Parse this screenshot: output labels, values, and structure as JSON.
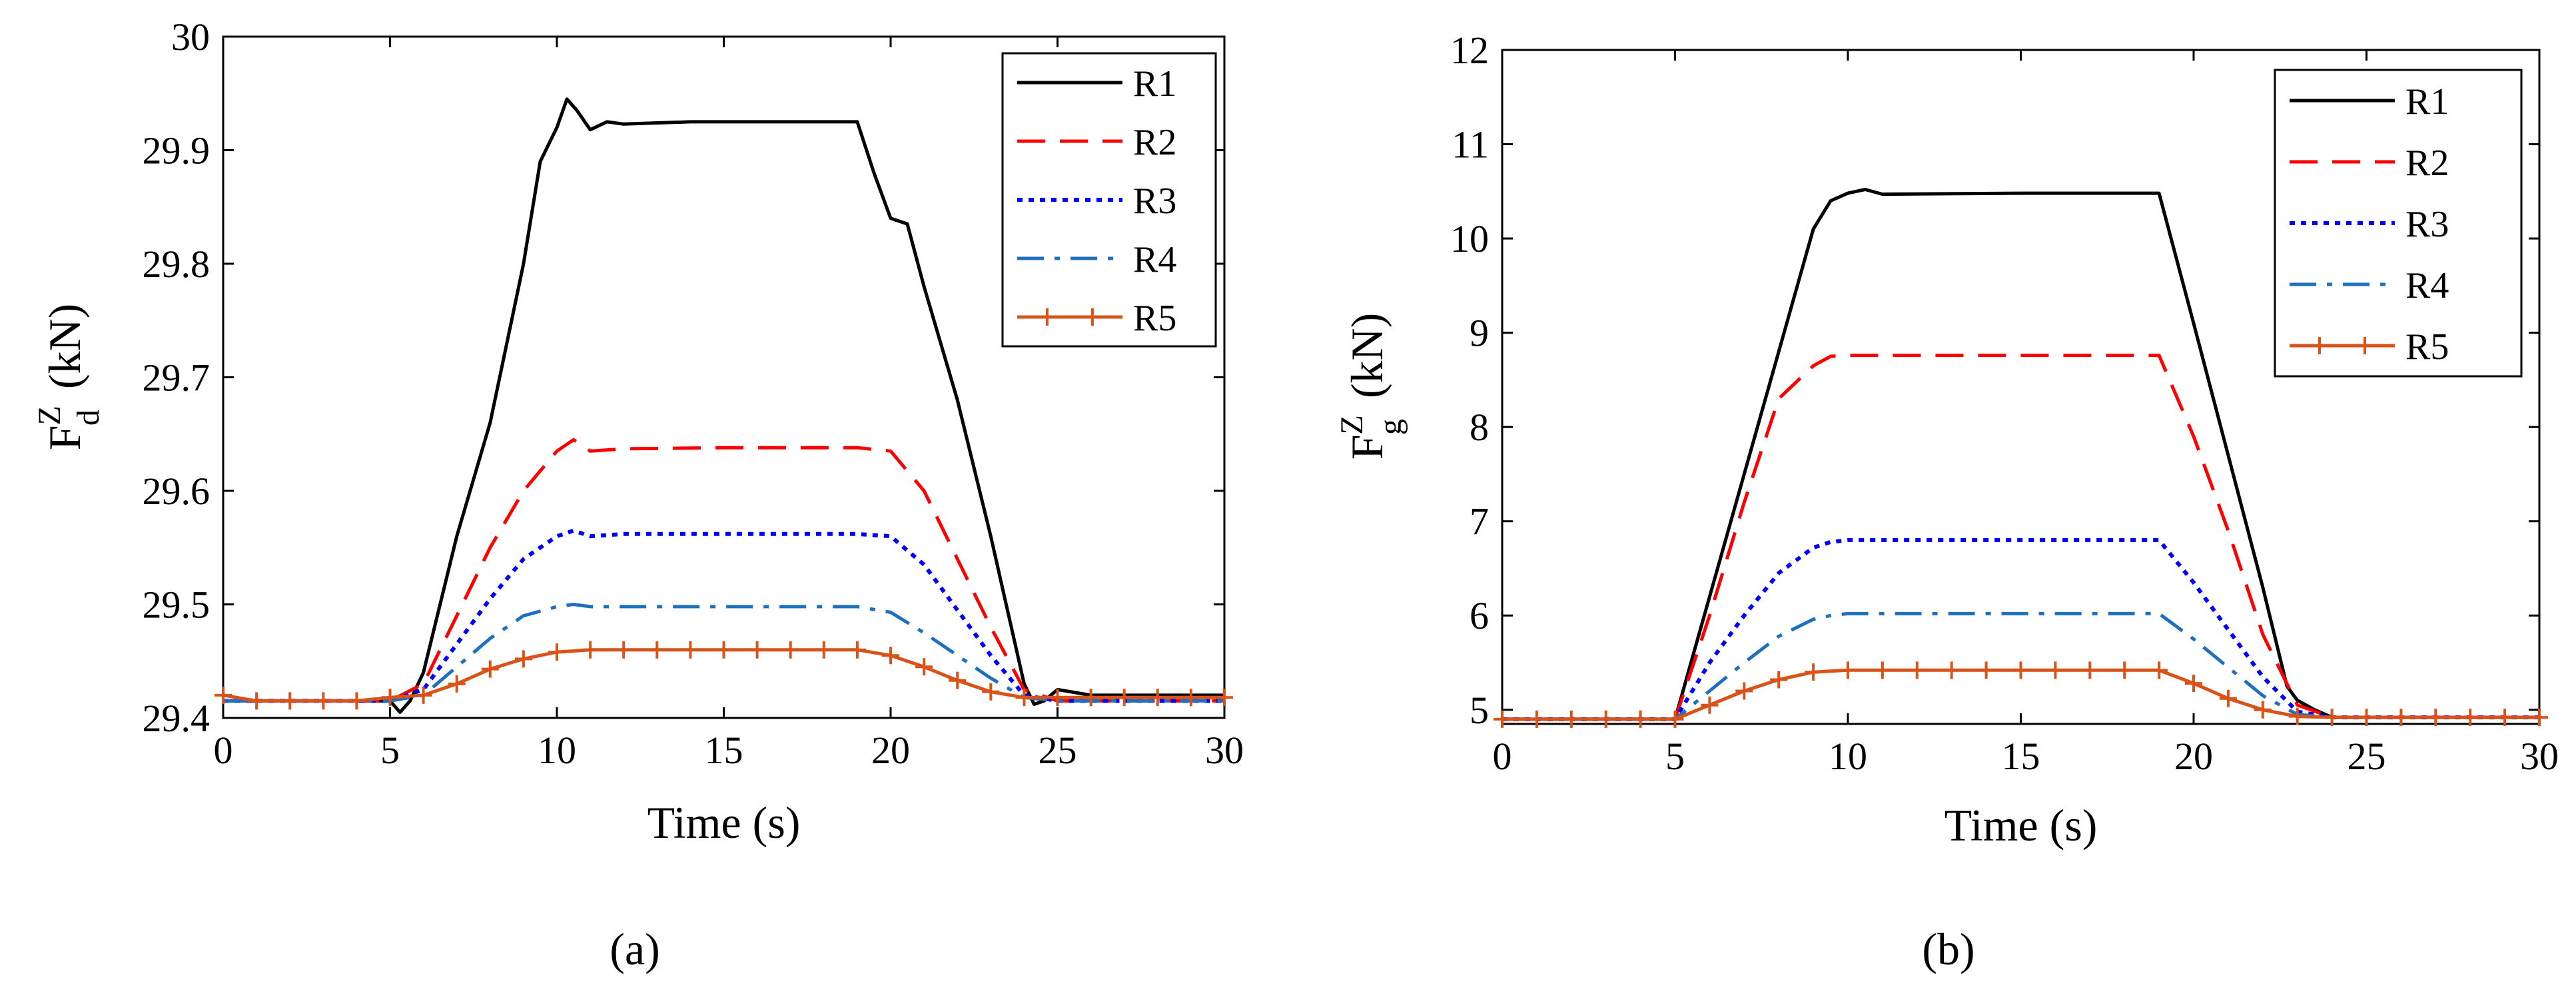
{
  "figure": {
    "captions": [
      "(a)",
      "(b)"
    ]
  },
  "chart_data": [
    {
      "type": "line",
      "panel": "a",
      "xlabel": "Time (s)",
      "ylabel": {
        "main": "F",
        "sup": "Z",
        "sub": "d",
        "unit": "(kN)"
      },
      "xlim": [
        0,
        30
      ],
      "ylim": [
        29.4,
        30
      ],
      "xticks": [
        0,
        5,
        10,
        15,
        20,
        25,
        30
      ],
      "yticks": [
        29.4,
        29.5,
        29.6,
        29.7,
        29.8,
        29.9,
        30
      ],
      "ytick_labels": [
        "29.4",
        "29.5",
        "29.6",
        "29.7",
        "29.8",
        "29.9",
        "30"
      ],
      "legend_position": "top-right",
      "series": [
        {
          "name": "R1",
          "color": "#000000",
          "style": "solid",
          "x": [
            0,
            5,
            5.3,
            5.6,
            6,
            7,
            8,
            9,
            9.5,
            10,
            10.3,
            10.6,
            11,
            11.5,
            12,
            14,
            16,
            18,
            19,
            19.5,
            20,
            20.5,
            21,
            22,
            23,
            24,
            24.3,
            24.6,
            25,
            26,
            28,
            30
          ],
          "y": [
            29.415,
            29.415,
            29.405,
            29.415,
            29.44,
            29.56,
            29.66,
            29.8,
            29.89,
            29.92,
            29.945,
            29.935,
            29.918,
            29.925,
            29.923,
            29.925,
            29.925,
            29.925,
            29.925,
            29.88,
            29.84,
            29.835,
            29.78,
            29.68,
            29.56,
            29.43,
            29.412,
            29.415,
            29.425,
            29.42,
            29.42,
            29.42
          ]
        },
        {
          "name": "R2",
          "color": "#ff0000",
          "style": "dashed",
          "x": [
            0,
            5,
            6,
            7,
            8,
            9,
            10,
            10.5,
            11,
            12,
            15,
            18,
            19,
            20,
            21,
            22,
            23,
            24,
            25,
            30
          ],
          "y": [
            29.415,
            29.415,
            29.43,
            29.49,
            29.55,
            29.6,
            29.635,
            29.645,
            29.635,
            29.637,
            29.638,
            29.638,
            29.638,
            29.635,
            29.6,
            29.54,
            29.48,
            29.425,
            29.415,
            29.415
          ]
        },
        {
          "name": "R3",
          "color": "#0000ff",
          "style": "dotted",
          "x": [
            0,
            5,
            6,
            7,
            8,
            9,
            10,
            10.5,
            11,
            12,
            15,
            18,
            19,
            20,
            21,
            22,
            23,
            24,
            25,
            30
          ],
          "y": [
            29.415,
            29.415,
            29.425,
            29.465,
            29.505,
            29.54,
            29.56,
            29.565,
            29.56,
            29.562,
            29.562,
            29.562,
            29.562,
            29.56,
            29.535,
            29.495,
            29.455,
            29.42,
            29.415,
            29.415
          ]
        },
        {
          "name": "R4",
          "color": "#1f6fbf",
          "style": "dashdot",
          "x": [
            0,
            5,
            6,
            7,
            8,
            9,
            10,
            10.5,
            11,
            12,
            15,
            18,
            19,
            20,
            21,
            22,
            23,
            24,
            25,
            30
          ],
          "y": [
            29.415,
            29.415,
            29.42,
            29.445,
            29.47,
            29.49,
            29.498,
            29.5,
            29.498,
            29.498,
            29.498,
            29.498,
            29.498,
            29.493,
            29.475,
            29.455,
            29.435,
            29.418,
            29.415,
            29.415
          ]
        },
        {
          "name": "R5",
          "color": "#d95319",
          "style": "plus",
          "x": [
            0,
            1,
            2,
            3,
            4,
            5,
            6,
            7,
            8,
            9,
            10,
            11,
            12,
            13,
            14,
            15,
            16,
            17,
            18,
            19,
            20,
            21,
            22,
            23,
            24,
            25,
            26,
            27,
            28,
            29,
            30
          ],
          "y": [
            29.42,
            29.415,
            29.415,
            29.415,
            29.415,
            29.418,
            29.42,
            29.43,
            29.443,
            29.452,
            29.458,
            29.46,
            29.46,
            29.46,
            29.46,
            29.46,
            29.46,
            29.46,
            29.46,
            29.46,
            29.455,
            29.445,
            29.433,
            29.423,
            29.418,
            29.418,
            29.418,
            29.418,
            29.418,
            29.418,
            29.418
          ]
        }
      ]
    },
    {
      "type": "line",
      "panel": "b",
      "xlabel": "Time (s)",
      "ylabel": {
        "main": "F",
        "sup": "Z",
        "sub": "g",
        "unit": "(kN)"
      },
      "xlim": [
        0,
        30
      ],
      "ylim": [
        4.85,
        12
      ],
      "xticks": [
        0,
        5,
        10,
        15,
        20,
        25,
        30
      ],
      "yticks": [
        5,
        6,
        7,
        8,
        9,
        10,
        11,
        12
      ],
      "ytick_labels": [
        "5",
        "6",
        "7",
        "8",
        "9",
        "10",
        "11",
        "12"
      ],
      "legend_position": "top-right",
      "series": [
        {
          "name": "R1",
          "color": "#000000",
          "style": "solid",
          "x": [
            0,
            5,
            6,
            7,
            8,
            9,
            9.5,
            10,
            10.5,
            11,
            15,
            18.5,
            19,
            20,
            21,
            22,
            22.7,
            23,
            23.5,
            24,
            30
          ],
          "y": [
            4.9,
            4.9,
            6.2,
            7.5,
            8.8,
            10.1,
            10.4,
            10.48,
            10.52,
            10.47,
            10.48,
            10.48,
            10.48,
            9.1,
            7.7,
            6.3,
            5.25,
            5.1,
            5.0,
            4.92,
            4.92
          ]
        },
        {
          "name": "R2",
          "color": "#ff0000",
          "style": "dashed",
          "x": [
            0,
            5,
            6,
            7,
            8,
            9,
            9.5,
            10,
            12,
            15,
            18,
            19,
            20,
            21,
            22,
            23,
            24,
            30
          ],
          "y": [
            4.9,
            4.9,
            6.0,
            7.2,
            8.3,
            8.65,
            8.75,
            8.76,
            8.76,
            8.76,
            8.76,
            8.76,
            7.9,
            6.9,
            5.8,
            5.05,
            4.92,
            4.92
          ]
        },
        {
          "name": "R3",
          "color": "#0000ff",
          "style": "dotted",
          "x": [
            0,
            5,
            6,
            7,
            8,
            9,
            9.5,
            10,
            12,
            15,
            18,
            19,
            20,
            21,
            22,
            23,
            24,
            30
          ],
          "y": [
            4.9,
            4.9,
            5.5,
            6.0,
            6.45,
            6.72,
            6.78,
            6.8,
            6.8,
            6.8,
            6.8,
            6.8,
            6.35,
            5.85,
            5.35,
            4.98,
            4.92,
            4.92
          ]
        },
        {
          "name": "R4",
          "color": "#1f6fbf",
          "style": "dashdot",
          "x": [
            0,
            5,
            6,
            7,
            8,
            9,
            9.5,
            10,
            12,
            15,
            18,
            19,
            20,
            21,
            22,
            23,
            24,
            30
          ],
          "y": [
            4.9,
            4.9,
            5.2,
            5.5,
            5.78,
            5.96,
            6.0,
            6.02,
            6.02,
            6.02,
            6.02,
            6.02,
            5.75,
            5.45,
            5.15,
            4.95,
            4.92,
            4.92
          ]
        },
        {
          "name": "R5",
          "color": "#d95319",
          "style": "plus",
          "x": [
            0,
            1,
            2,
            3,
            4,
            5,
            6,
            7,
            8,
            9,
            10,
            11,
            12,
            13,
            14,
            15,
            16,
            17,
            18,
            19,
            20,
            21,
            22,
            23,
            24,
            25,
            26,
            27,
            28,
            29,
            30
          ],
          "y": [
            4.9,
            4.9,
            4.9,
            4.9,
            4.9,
            4.9,
            5.05,
            5.2,
            5.32,
            5.4,
            5.42,
            5.42,
            5.42,
            5.42,
            5.42,
            5.42,
            5.42,
            5.42,
            5.42,
            5.42,
            5.28,
            5.12,
            5.0,
            4.93,
            4.92,
            4.92,
            4.92,
            4.92,
            4.92,
            4.92,
            4.92
          ]
        }
      ]
    }
  ]
}
